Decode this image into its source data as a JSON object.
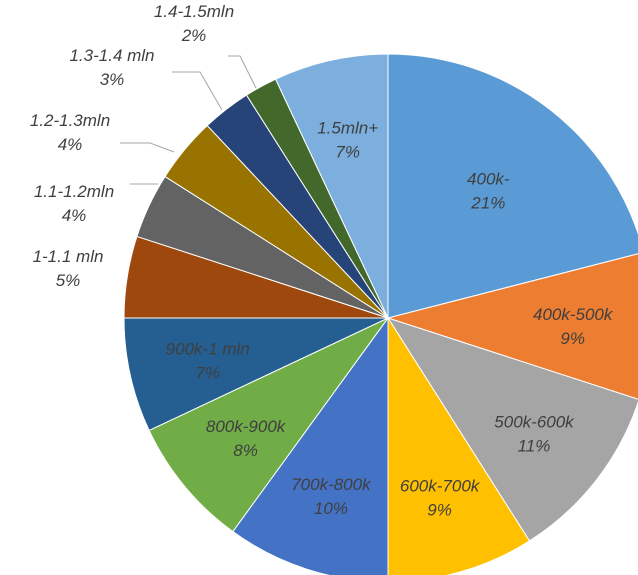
{
  "chart_data": {
    "type": "pie",
    "title": "",
    "slices": [
      {
        "label": "400k-",
        "value": 21,
        "value_label": "21%",
        "color": "#5b9bd5"
      },
      {
        "label": "400k-500k",
        "value": 9,
        "value_label": "9%",
        "color": "#ed7d31"
      },
      {
        "label": "500k-600k",
        "value": 11,
        "value_label": "11%",
        "color": "#a5a5a5"
      },
      {
        "label": "600k-700k",
        "value": 9,
        "value_label": "9%",
        "color": "#ffc000"
      },
      {
        "label": "700k-800k",
        "value": 10,
        "value_label": "10%",
        "color": "#4472c4"
      },
      {
        "label": "800k-900k",
        "value": 8,
        "value_label": "8%",
        "color": "#70ad47"
      },
      {
        "label": "900k-1 mln",
        "value": 7,
        "value_label": "7%",
        "color": "#255e91"
      },
      {
        "label": "1-1.1 mln",
        "value": 5,
        "value_label": "5%",
        "color": "#9e480e"
      },
      {
        "label": "1.1-1.2mln",
        "value": 4,
        "value_label": "4%",
        "color": "#636363"
      },
      {
        "label": "1.2-1.3mln",
        "value": 4,
        "value_label": "4%",
        "color": "#997300"
      },
      {
        "label": "1.3-1.4 mln",
        "value": 3,
        "value_label": "3%",
        "color": "#264478"
      },
      {
        "label": "1.4-1.5mln",
        "value": 2,
        "value_label": "2%",
        "color": "#43682b"
      },
      {
        "label": "1.5mln+",
        "value": 7,
        "value_label": "7%",
        "color": "#7cafdd"
      }
    ],
    "legend": "none",
    "data_labels": "category and percentage"
  }
}
